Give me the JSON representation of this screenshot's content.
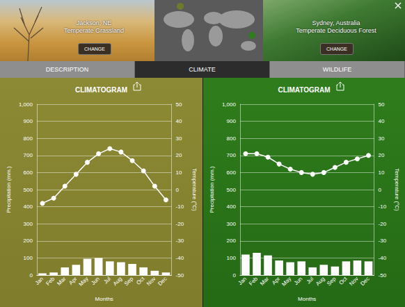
{
  "header": {
    "left": {
      "location": "Jackson, NE",
      "biome": "Temperate Grassland",
      "button": "CHANGE"
    },
    "right": {
      "location": "Sydney, Australia",
      "biome": "Temperate Deciduous Forest",
      "button": "CHANGE"
    }
  },
  "tabs": {
    "items": [
      "DESCRIPTION",
      "CLIMATE",
      "WILDLIFE"
    ],
    "selected": "CLIMATE"
  },
  "chart_data": [
    {
      "type": "bar",
      "title": "CLIMATOGRAM",
      "x_label": "Months",
      "y_label": "Precipitation (mm.)",
      "y2_label": "Temperature (°C)",
      "categories": [
        "Jan",
        "Feb",
        "Mar",
        "Apr",
        "May",
        "Jun",
        "Jul",
        "Aug",
        "Sep",
        "Oct",
        "Nov",
        "Dec"
      ],
      "series": [
        {
          "name": "Precipitation (mm.)",
          "type": "bar",
          "color": "#ffffff",
          "values": [
            10,
            15,
            45,
            60,
            95,
            100,
            80,
            75,
            65,
            45,
            25,
            15
          ]
        },
        {
          "name": "Temperature (°C)",
          "type": "line",
          "axis": "y2",
          "color": "#ffffff",
          "marker": "circle",
          "values": [
            -8,
            -5,
            2,
            9,
            16,
            21,
            24,
            22,
            17,
            11,
            2,
            -6
          ]
        }
      ],
      "ylim": [
        0,
        1000
      ],
      "yticks": [
        0,
        100,
        200,
        300,
        400,
        500,
        600,
        700,
        800,
        900,
        1000
      ],
      "y2lim": [
        -50,
        50
      ],
      "y2ticks": [
        -50,
        -40,
        -30,
        -20,
        -10,
        0,
        10,
        20,
        30,
        40,
        50
      ],
      "grid": true
    },
    {
      "type": "bar",
      "title": "CLIMATOGRAM",
      "x_label": "Months",
      "y_label": "Precipitation (mm.)",
      "y2_label": "Temperature (°C)",
      "categories": [
        "Jan",
        "Feb",
        "Mar",
        "Apr",
        "May",
        "Jun",
        "Jul",
        "Aug",
        "Sep",
        "Oct",
        "Nov",
        "Dec"
      ],
      "series": [
        {
          "name": "Precipitation (mm.)",
          "type": "bar",
          "color": "#ffffff",
          "values": [
            120,
            130,
            115,
            85,
            75,
            80,
            45,
            60,
            50,
            80,
            85,
            80
          ]
        },
        {
          "name": "Temperature (°C)",
          "type": "line",
          "axis": "y2",
          "color": "#ffffff",
          "marker": "circle",
          "values": [
            21,
            21,
            19,
            15,
            12,
            10,
            9,
            10,
            13,
            16,
            18,
            20
          ]
        }
      ],
      "ylim": [
        0,
        1000
      ],
      "yticks": [
        0,
        100,
        200,
        300,
        400,
        500,
        600,
        700,
        800,
        900,
        1000
      ],
      "y2lim": [
        -50,
        50
      ],
      "y2ticks": [
        -50,
        -40,
        -30,
        -20,
        -10,
        0,
        10,
        20,
        30,
        40,
        50
      ],
      "grid": true
    }
  ]
}
